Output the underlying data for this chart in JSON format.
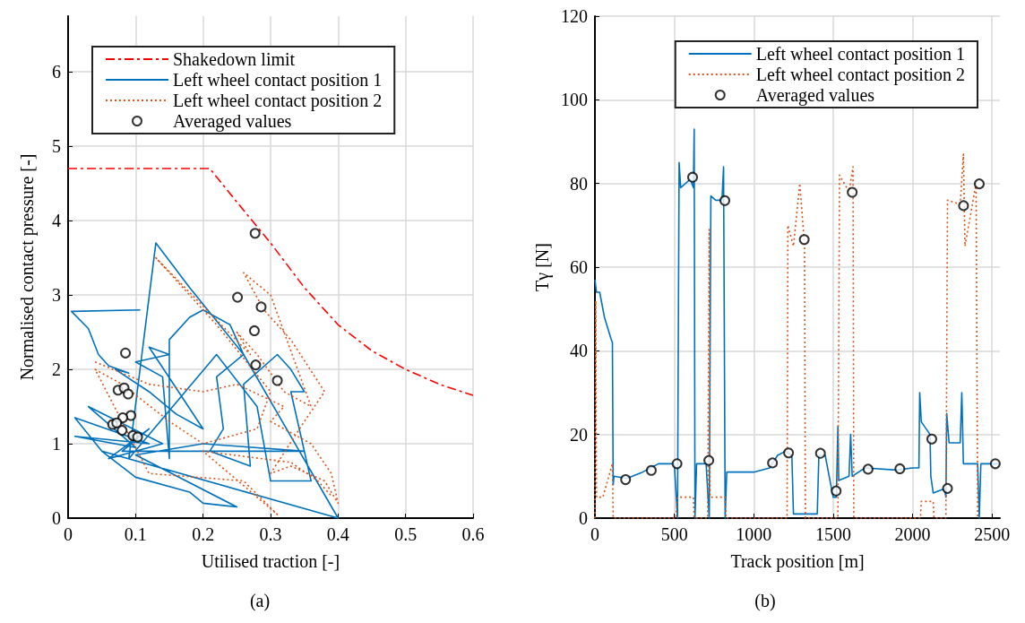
{
  "chart_data": [
    {
      "type": "line",
      "xlabel": "Utilised traction [-]",
      "ylabel": "Normalised contact pressure [-]",
      "annotations": [
        "(a)"
      ],
      "xlim": [
        0,
        0.6
      ],
      "xticks": [
        0,
        0.1,
        0.2,
        0.3,
        0.4,
        0.5,
        0.6
      ],
      "ylim": [
        0,
        6.75
      ],
      "yticks": [
        0,
        1,
        2,
        3,
        4,
        5,
        6
      ],
      "grid": true,
      "legend": "top",
      "series": [
        {
          "name": "Shakedown limit",
          "color": "#ff0000",
          "line_style": "dashed",
          "x": [
            0,
            0.21,
            0.25,
            0.3,
            0.35,
            0.4,
            0.45,
            0.5,
            0.55,
            0.6
          ],
          "values": [
            4.7,
            4.7,
            4.25,
            3.7,
            3.1,
            2.6,
            2.25,
            2.0,
            1.8,
            1.65
          ]
        },
        {
          "name": "Left wheel contact position 1",
          "color": "#0072bd",
          "line_style": "solid",
          "x": [
            0.107,
            0.005,
            0.03,
            0.045,
            0.06,
            0.09,
            0.07,
            0.12,
            0.16,
            0.2,
            0.12,
            0.15,
            0.1,
            0.14,
            0.15,
            0.15,
            0.18,
            0.2,
            0.24,
            0.26,
            0.22,
            0.23,
            0.21,
            0.27,
            0.26,
            0.31,
            0.33,
            0.35,
            0.33,
            0.36,
            0.3,
            0.28,
            0.22,
            0.09,
            0.13,
            0.18,
            0.26,
            0.4,
            0.05,
            0.01,
            0.12,
            0.01,
            0.1,
            0.03,
            0.14,
            0.06,
            0.12,
            0.08,
            0.35,
            0.2,
            0.1,
            0.25,
            0.2,
            0.18,
            0.1,
            0.05
          ],
          "values": [
            2.8,
            2.78,
            2.55,
            2.2,
            2.05,
            1.95,
            2.0,
            1.7,
            1.4,
            1.2,
            2.3,
            2.2,
            2.1,
            1.9,
            0.8,
            2.4,
            2.7,
            2.8,
            2.6,
            2.2,
            1.9,
            1.2,
            0.9,
            0.7,
            1.8,
            2.2,
            2.0,
            1.7,
            1.7,
            0.5,
            0.5,
            1.5,
            2.2,
            0.8,
            3.7,
            3.1,
            2.2,
            0.0,
            0.9,
            1.35,
            1.0,
            1.1,
            0.95,
            1.5,
            1.0,
            0.8,
            1.2,
            0.9,
            0.9,
            1.0,
            0.85,
            0.15,
            0.2,
            0.35,
            0.55,
            0.9
          ]
        },
        {
          "name": "Left wheel contact position 2",
          "color": "#d95319",
          "line_style": "dotted",
          "x": [
            0.04,
            0.12,
            0.2,
            0.25,
            0.32,
            0.3,
            0.36,
            0.39,
            0.4,
            0.38,
            0.33,
            0.3,
            0.35,
            0.38,
            0.33,
            0.29,
            0.26,
            0.3,
            0.34,
            0.36,
            0.32,
            0.28,
            0.25,
            0.27,
            0.13,
            0.22,
            0.3,
            0.28,
            0.2,
            0.15,
            0.08,
            0.04,
            0.12,
            0.26,
            0.31,
            0.2,
            0.33,
            0.37,
            0.39
          ],
          "values": [
            2.1,
            1.8,
            1.7,
            1.8,
            1.5,
            1.3,
            1.0,
            0.6,
            0.2,
            0.5,
            0.7,
            0.6,
            1.3,
            1.7,
            2.4,
            2.8,
            3.3,
            3.0,
            2.0,
            1.5,
            1.7,
            2.2,
            2.5,
            2.2,
            3.5,
            2.6,
            1.7,
            1.2,
            1.0,
            1.3,
            1.8,
            2.0,
            0.6,
            0.5,
            0.05,
            0.9,
            0.75,
            0.5,
            0.3
          ]
        },
        {
          "name": "Averaged values",
          "type": "scatter",
          "color": "#000000",
          "marker": "circle",
          "x": [
            0.277,
            0.251,
            0.286,
            0.276,
            0.278,
            0.31,
            0.085,
            0.074,
            0.083,
            0.089,
            0.093,
            0.081,
            0.066,
            0.072,
            0.08,
            0.096,
            0.103
          ],
          "values": [
            3.83,
            2.97,
            2.84,
            2.52,
            2.06,
            1.85,
            2.22,
            1.72,
            1.75,
            1.67,
            1.38,
            1.35,
            1.26,
            1.28,
            1.18,
            1.11,
            1.09
          ]
        }
      ]
    },
    {
      "type": "line",
      "xlabel": "Track position [m]",
      "ylabel": "Tγ [N]",
      "annotations": [
        "(b)"
      ],
      "xlim": [
        0,
        2550
      ],
      "xticks": [
        0,
        500,
        1000,
        1500,
        2000,
        2500
      ],
      "ylim": [
        0,
        120
      ],
      "yticks": [
        0,
        20,
        40,
        60,
        80,
        100,
        120
      ],
      "grid": true,
      "legend": "top right",
      "series": [
        {
          "name": "Left wheel contact position 1",
          "color": "#0072bd",
          "line_style": "solid",
          "x": [
            0,
            10,
            30,
            60,
            100,
            110,
            115,
            120,
            200,
            300,
            350,
            400,
            500,
            520,
            530,
            540,
            600,
            620,
            625,
            630,
            640,
            700,
            720,
            730,
            760,
            800,
            810,
            820,
            830,
            1000,
            1100,
            1150,
            1200,
            1240,
            1250,
            1400,
            1410,
            1450,
            1500,
            1520,
            1530,
            1535,
            1600,
            1610,
            1620,
            1700,
            1900,
            2000,
            2040,
            2045,
            2055,
            2110,
            2115,
            2130,
            2200,
            2210,
            2215,
            2230,
            2300,
            2310,
            2320,
            2410,
            2420,
            2430,
            2550
          ],
          "values": [
            57,
            54,
            54,
            48,
            43,
            42,
            8,
            10,
            9.5,
            11,
            12,
            13,
            13,
            0,
            85,
            79,
            81,
            79,
            93,
            0,
            13,
            13,
            0,
            77,
            76,
            76,
            84,
            0,
            11,
            11,
            12,
            15,
            16,
            15,
            1,
            1,
            15,
            15,
            5,
            5,
            22,
            9,
            10,
            20,
            10,
            12,
            11.5,
            12,
            12,
            30,
            23,
            20,
            10,
            6,
            7,
            5,
            25,
            18,
            18,
            30,
            13,
            13,
            0,
            13,
            13
          ]
        },
        {
          "name": "Left wheel contact position 2",
          "color": "#d95319",
          "line_style": "dotted",
          "x": [
            0,
            5,
            10,
            50,
            110,
            115,
            510,
            520,
            620,
            625,
            710,
            720,
            725,
            820,
            825,
            1210,
            1215,
            1250,
            1290,
            1320,
            1325,
            1530,
            1540,
            1600,
            1625,
            1630,
            2050,
            2055,
            2130,
            2135,
            2210,
            2220,
            2300,
            2320,
            2330,
            2400,
            2410
          ],
          "values": [
            0,
            52,
            5,
            5,
            13,
            0,
            0,
            5,
            5,
            0,
            0,
            69,
            5,
            5,
            0,
            0,
            70,
            65,
            80,
            65,
            0,
            0,
            82,
            78,
            84,
            0,
            0,
            4,
            4,
            0,
            0,
            76,
            75,
            87,
            65,
            80,
            0
          ]
        },
        {
          "name": "Averaged values",
          "type": "scatter",
          "color": "#000000",
          "marker": "circle",
          "x": [
            193,
            355,
            517,
            615,
            717,
            818,
            1118,
            1219,
            1318,
            1420,
            1519,
            1620,
            1720,
            1920,
            2121,
            2220,
            2321,
            2420,
            2521
          ],
          "values": [
            9.2,
            11.4,
            13.0,
            81.5,
            13.8,
            75.9,
            13.2,
            15.6,
            66.6,
            15.5,
            6.5,
            77.9,
            11.7,
            11.8,
            18.9,
            7.1,
            74.7,
            79.9,
            13.0
          ]
        }
      ]
    }
  ]
}
